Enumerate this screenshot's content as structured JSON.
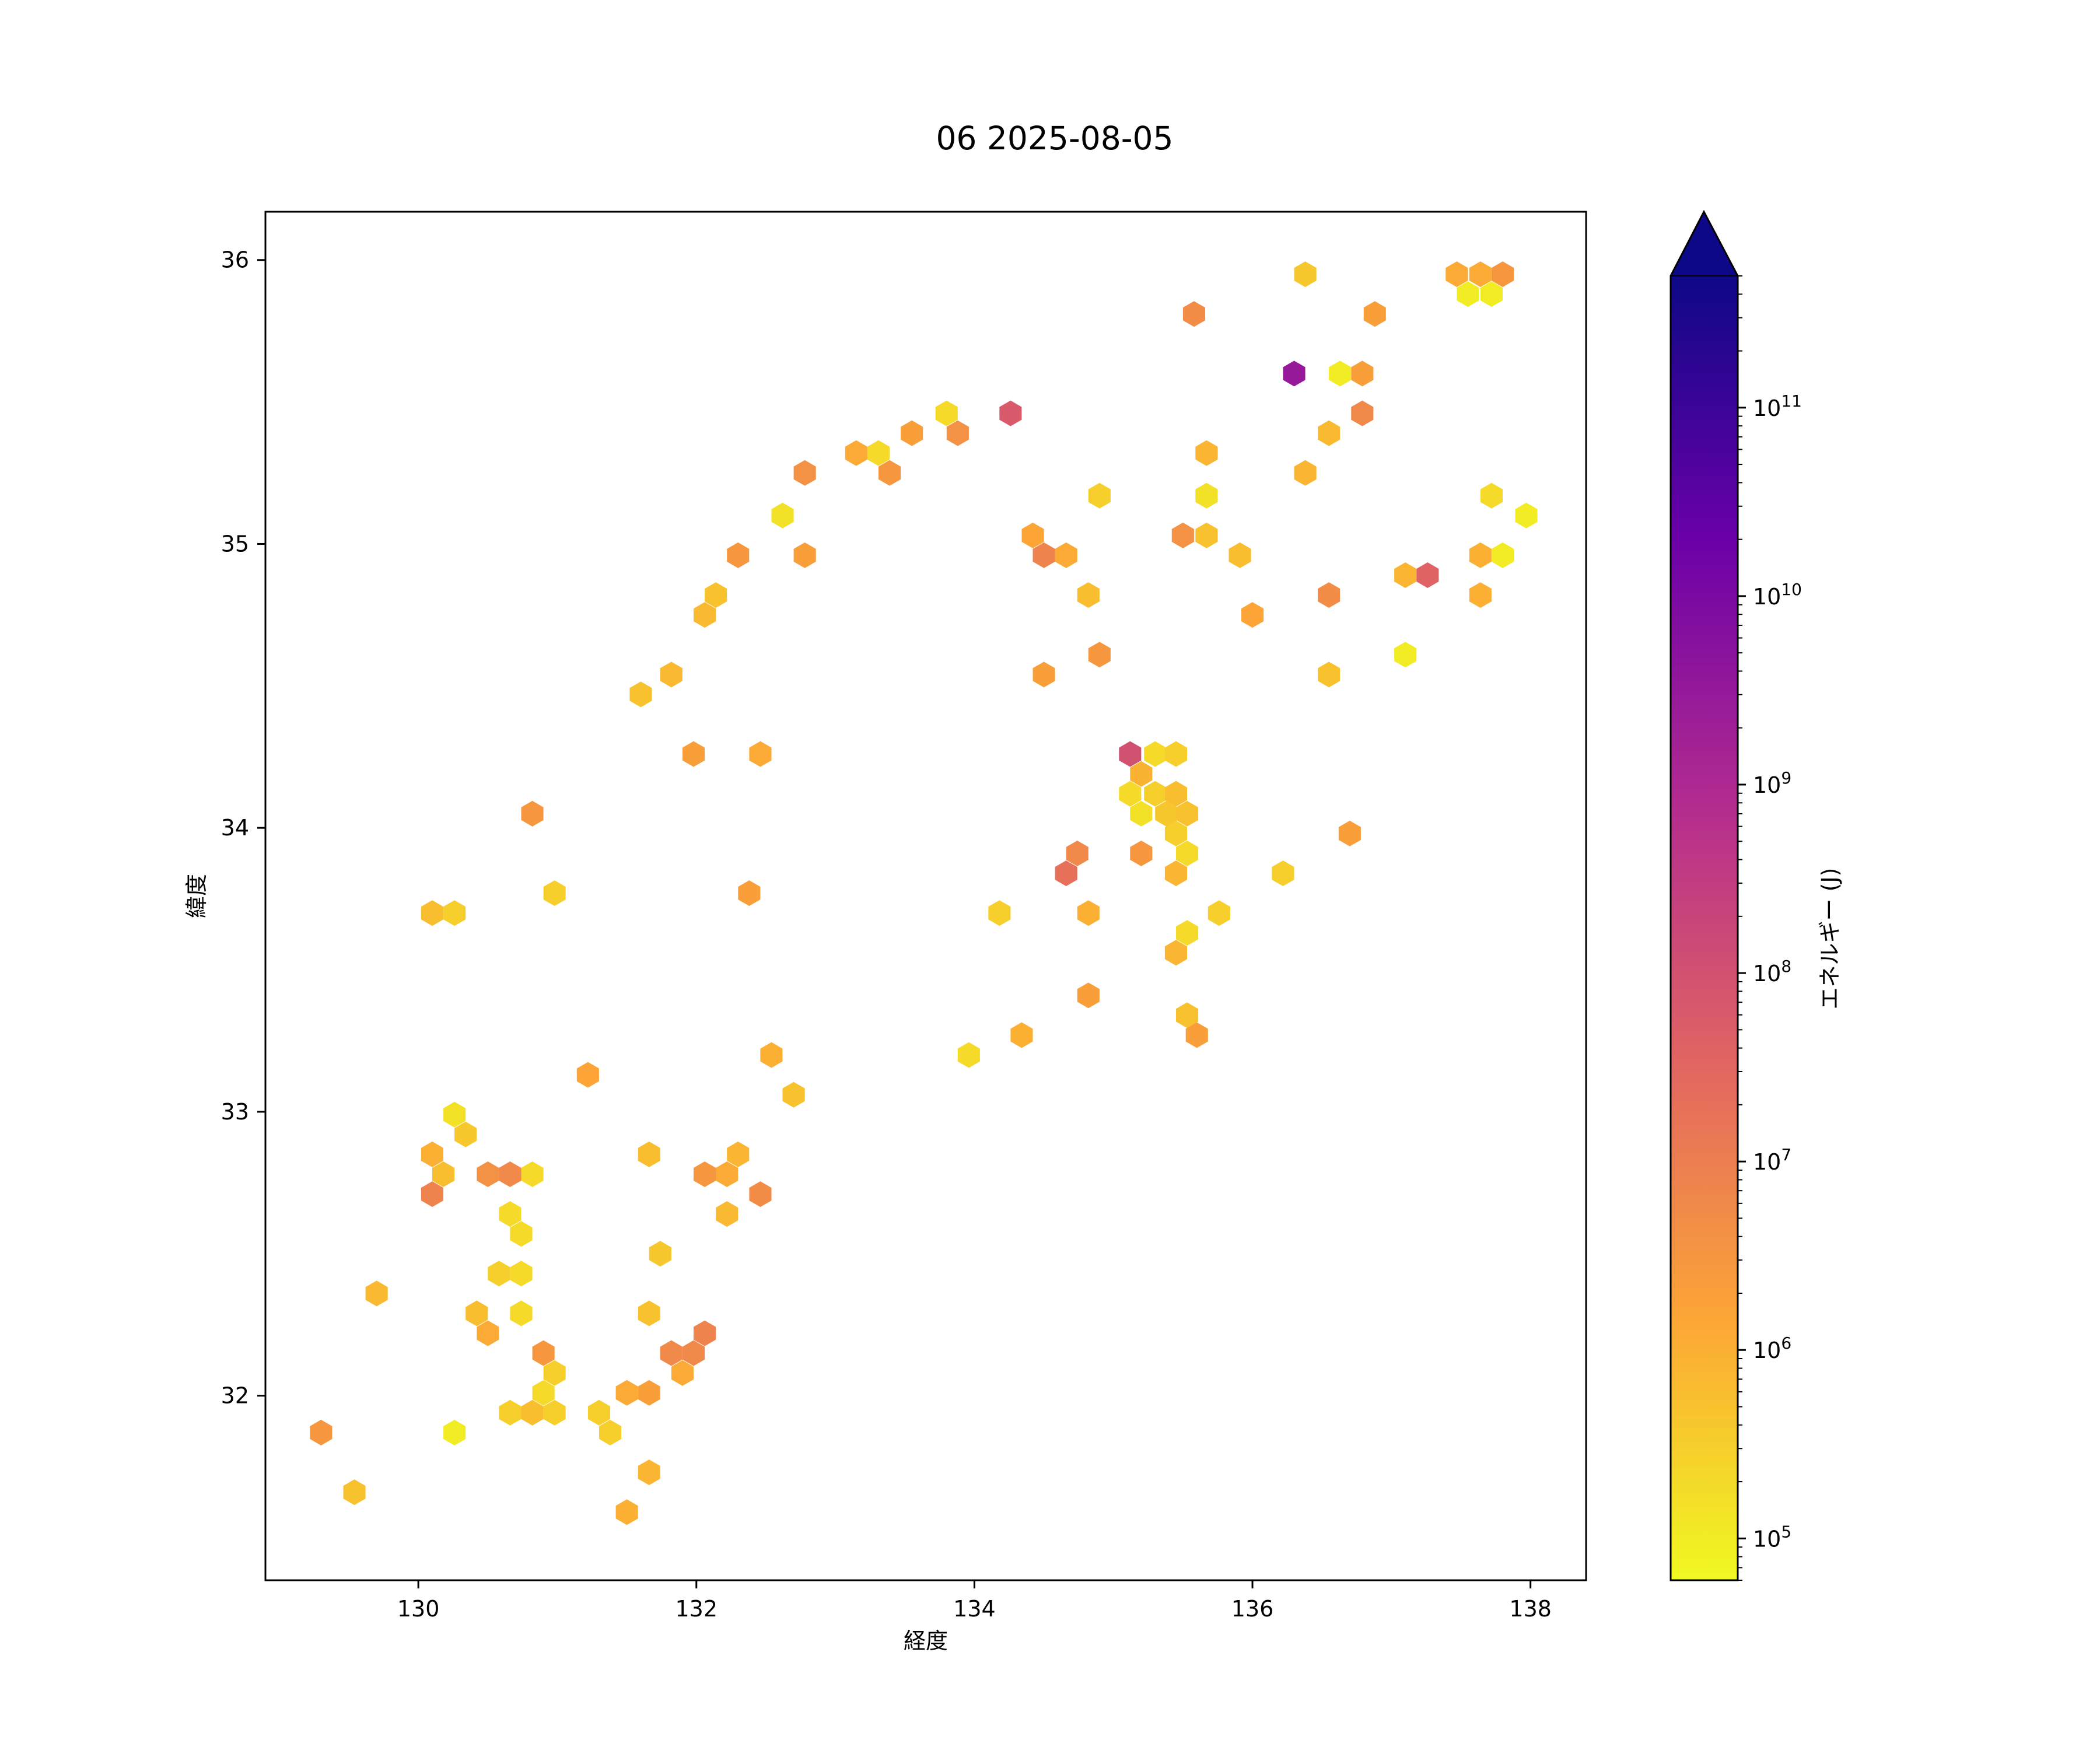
{
  "chart_data": {
    "type": "hexbin",
    "title": "06 2025-08-05",
    "xlabel": "経度",
    "ylabel": "緯度",
    "xlim": [
      128.9,
      138.4
    ],
    "ylim": [
      31.35,
      36.17
    ],
    "x_ticks": [
      {
        "value": 130,
        "label": "130"
      },
      {
        "value": 132,
        "label": "132"
      },
      {
        "value": 134,
        "label": "134"
      },
      {
        "value": 136,
        "label": "136"
      },
      {
        "value": 138,
        "label": "138"
      }
    ],
    "y_ticks": [
      {
        "value": 32,
        "label": "32"
      },
      {
        "value": 33,
        "label": "33"
      },
      {
        "value": 34,
        "label": "34"
      },
      {
        "value": 35,
        "label": "35"
      },
      {
        "value": 36,
        "label": "36"
      }
    ],
    "colorbar": {
      "label": "エネルギー (J)",
      "scale": "log",
      "colormap": "plasma_r",
      "range": [
        60000,
        500000000000
      ],
      "extend": "max",
      "ticks": [
        {
          "value": 100000,
          "base": "10",
          "exp": "5"
        },
        {
          "value": 1000000,
          "base": "10",
          "exp": "6"
        },
        {
          "value": 10000000,
          "base": "10",
          "exp": "7"
        },
        {
          "value": 100000000,
          "base": "10",
          "exp": "8"
        },
        {
          "value": 1000000000,
          "base": "10",
          "exp": "9"
        },
        {
          "value": 10000000000,
          "base": "10",
          "exp": "10"
        },
        {
          "value": 100000000000,
          "base": "10",
          "exp": "11"
        }
      ],
      "colors": [
        "#f0f921",
        "#fca636",
        "#e16462",
        "#b12a90",
        "#6a00a8",
        "#0d0887"
      ]
    },
    "points": [
      [
        136.38,
        35.95,
        0.4
      ],
      [
        137.47,
        35.95,
        1.2
      ],
      [
        137.64,
        35.95,
        1.2
      ],
      [
        137.8,
        35.95,
        3
      ],
      [
        137.55,
        35.88,
        0.1
      ],
      [
        137.72,
        35.88,
        0.1
      ],
      [
        135.58,
        35.81,
        5
      ],
      [
        136.88,
        35.81,
        2
      ],
      [
        136.3,
        35.6,
        3000
      ],
      [
        136.63,
        35.6,
        0.1
      ],
      [
        136.79,
        35.6,
        2
      ],
      [
        134.26,
        35.46,
        60
      ],
      [
        136.79,
        35.46,
        6
      ],
      [
        133.8,
        35.46,
        0.2
      ],
      [
        133.88,
        35.39,
        4
      ],
      [
        133.55,
        35.39,
        2
      ],
      [
        136.55,
        35.39,
        0.7
      ],
      [
        133.15,
        35.32,
        1.2
      ],
      [
        133.31,
        35.32,
        0.2
      ],
      [
        135.67,
        35.32,
        0.8
      ],
      [
        132.78,
        35.25,
        4
      ],
      [
        133.39,
        35.25,
        3
      ],
      [
        136.38,
        35.25,
        0.8
      ],
      [
        134.9,
        35.17,
        0.3
      ],
      [
        135.67,
        35.17,
        0.15
      ],
      [
        137.72,
        35.17,
        0.2
      ],
      [
        132.62,
        35.1,
        0.15
      ],
      [
        137.97,
        35.1,
        0.1
      ],
      [
        134.42,
        35.03,
        1.5
      ],
      [
        135.5,
        35.03,
        4
      ],
      [
        135.67,
        35.03,
        0.5
      ],
      [
        132.3,
        34.96,
        3
      ],
      [
        132.78,
        34.96,
        2
      ],
      [
        134.5,
        34.96,
        8
      ],
      [
        134.66,
        34.96,
        1.2
      ],
      [
        135.91,
        34.96,
        0.6
      ],
      [
        137.64,
        34.96,
        1
      ],
      [
        137.8,
        34.96,
        0.1
      ],
      [
        137.1,
        34.89,
        0.8
      ],
      [
        137.26,
        34.89,
        40
      ],
      [
        132.14,
        34.82,
        0.5
      ],
      [
        134.82,
        34.82,
        0.6
      ],
      [
        136.55,
        34.82,
        5
      ],
      [
        137.64,
        34.82,
        1
      ],
      [
        132.06,
        34.75,
        0.7
      ],
      [
        136.0,
        34.75,
        1.5
      ],
      [
        134.9,
        34.61,
        3
      ],
      [
        137.1,
        34.61,
        0.1
      ],
      [
        131.82,
        34.54,
        0.7
      ],
      [
        134.5,
        34.54,
        2
      ],
      [
        136.55,
        34.54,
        0.5
      ],
      [
        131.6,
        34.47,
        0.5
      ],
      [
        131.98,
        34.26,
        2
      ],
      [
        132.46,
        34.26,
        1.2
      ],
      [
        135.12,
        34.26,
        100
      ],
      [
        135.3,
        34.26,
        0.2
      ],
      [
        135.45,
        34.26,
        0.3
      ],
      [
        135.2,
        34.19,
        0.9
      ],
      [
        135.12,
        34.12,
        0.2
      ],
      [
        135.3,
        34.12,
        0.3
      ],
      [
        135.45,
        34.12,
        0.6
      ],
      [
        130.82,
        34.05,
        3
      ],
      [
        135.2,
        34.05,
        0.15
      ],
      [
        135.38,
        34.05,
        0.4
      ],
      [
        135.53,
        34.05,
        0.5
      ],
      [
        135.45,
        33.98,
        0.3
      ],
      [
        136.7,
        33.98,
        2
      ],
      [
        134.74,
        33.91,
        6
      ],
      [
        135.2,
        33.91,
        3
      ],
      [
        135.53,
        33.91,
        0.2
      ],
      [
        134.66,
        33.84,
        20
      ],
      [
        135.45,
        33.84,
        0.8
      ],
      [
        136.22,
        33.84,
        0.3
      ],
      [
        130.98,
        33.77,
        0.3
      ],
      [
        132.38,
        33.77,
        2
      ],
      [
        130.1,
        33.7,
        0.6
      ],
      [
        130.26,
        33.7,
        0.3
      ],
      [
        134.18,
        33.7,
        0.3
      ],
      [
        134.82,
        33.7,
        1
      ],
      [
        135.76,
        33.7,
        0.3
      ],
      [
        135.53,
        33.63,
        0.2
      ],
      [
        135.45,
        33.56,
        0.8
      ],
      [
        134.82,
        33.41,
        2
      ],
      [
        135.53,
        33.34,
        0.5
      ],
      [
        134.34,
        33.27,
        1
      ],
      [
        135.6,
        33.27,
        2
      ],
      [
        132.54,
        33.2,
        1
      ],
      [
        133.96,
        33.2,
        0.2
      ],
      [
        131.22,
        33.13,
        1.5
      ],
      [
        132.7,
        33.06,
        0.5
      ],
      [
        130.26,
        32.99,
        0.15
      ],
      [
        130.34,
        32.92,
        0.4
      ],
      [
        130.1,
        32.85,
        1
      ],
      [
        131.66,
        32.85,
        0.6
      ],
      [
        132.3,
        32.85,
        0.8
      ],
      [
        130.18,
        32.78,
        0.6
      ],
      [
        130.5,
        32.78,
        4
      ],
      [
        130.66,
        32.78,
        6
      ],
      [
        130.82,
        32.78,
        0.2
      ],
      [
        132.06,
        32.78,
        3
      ],
      [
        132.22,
        32.78,
        1.2
      ],
      [
        130.1,
        32.71,
        8
      ],
      [
        132.46,
        32.71,
        5
      ],
      [
        130.66,
        32.64,
        0.2
      ],
      [
        132.22,
        32.64,
        0.7
      ],
      [
        130.74,
        32.57,
        0.2
      ],
      [
        131.74,
        32.5,
        0.4
      ],
      [
        130.58,
        32.43,
        0.3
      ],
      [
        130.74,
        32.43,
        0.2
      ],
      [
        129.7,
        32.36,
        0.7
      ],
      [
        130.42,
        32.29,
        0.6
      ],
      [
        130.74,
        32.29,
        0.2
      ],
      [
        131.66,
        32.29,
        0.5
      ],
      [
        130.5,
        32.22,
        1.2
      ],
      [
        132.06,
        32.22,
        8
      ],
      [
        130.9,
        32.15,
        3
      ],
      [
        131.82,
        32.15,
        6
      ],
      [
        131.98,
        32.15,
        6
      ],
      [
        130.98,
        32.08,
        0.3
      ],
      [
        131.9,
        32.08,
        1.2
      ],
      [
        130.9,
        32.01,
        0.2
      ],
      [
        131.5,
        32.01,
        1.2
      ],
      [
        131.66,
        32.01,
        2
      ],
      [
        130.66,
        31.94,
        0.3
      ],
      [
        130.82,
        31.94,
        0.6
      ],
      [
        130.98,
        31.94,
        0.3
      ],
      [
        131.3,
        31.94,
        0.3
      ],
      [
        129.3,
        31.87,
        3
      ],
      [
        130.26,
        31.87,
        0.1
      ],
      [
        131.38,
        31.87,
        0.3
      ],
      [
        131.66,
        31.73,
        0.8
      ],
      [
        129.54,
        31.66,
        0.5
      ],
      [
        131.5,
        31.59,
        1
      ]
    ]
  }
}
